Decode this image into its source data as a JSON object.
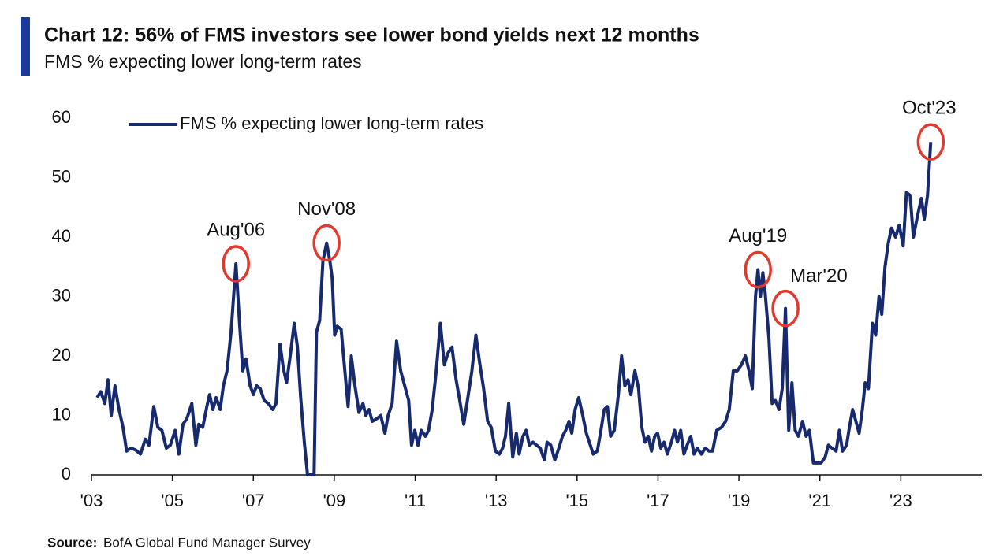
{
  "chart_data": {
    "type": "line",
    "title": "Chart 12: 56% of FMS investors see lower bond yields next 12 months",
    "subtitle": "FMS % expecting lower long-term rates",
    "x": [
      2003.14,
      2003.23,
      2003.33,
      2003.41,
      2003.49,
      2003.58,
      2003.68,
      2003.78,
      2003.87,
      2003.97,
      2004.09,
      2004.21,
      2004.33,
      2004.42,
      2004.54,
      2004.64,
      2004.74,
      2004.85,
      2004.95,
      2005.07,
      2005.16,
      2005.26,
      2005.36,
      2005.48,
      2005.58,
      2005.65,
      2005.75,
      2005.85,
      2005.92,
      2006.0,
      2006.08,
      2006.18,
      2006.26,
      2006.35,
      2006.45,
      2006.57,
      2006.66,
      2006.74,
      2006.82,
      2006.92,
      2007.0,
      2007.08,
      2007.17,
      2007.27,
      2007.37,
      2007.48,
      2007.56,
      2007.66,
      2007.74,
      2007.82,
      2007.91,
      2008.01,
      2008.09,
      2008.17,
      2008.26,
      2008.34,
      2008.5,
      2008.56,
      2008.64,
      2008.72,
      2008.81,
      2008.89,
      2008.95,
      2009.01,
      2009.07,
      2009.17,
      2009.26,
      2009.34,
      2009.42,
      2009.51,
      2009.61,
      2009.71,
      2009.78,
      2009.86,
      2009.94,
      2010.06,
      2010.15,
      2010.25,
      2010.33,
      2010.43,
      2010.54,
      2010.64,
      2010.74,
      2010.84,
      2010.91,
      2010.99,
      2011.07,
      2011.15,
      2011.25,
      2011.33,
      2011.42,
      2011.52,
      2011.62,
      2011.72,
      2011.81,
      2011.91,
      2012.01,
      2012.1,
      2012.2,
      2012.3,
      2012.4,
      2012.5,
      2012.59,
      2012.69,
      2012.79,
      2012.88,
      2012.98,
      2013.08,
      2013.16,
      2013.23,
      2013.31,
      2013.41,
      2013.5,
      2013.57,
      2013.66,
      2013.74,
      2013.82,
      2013.91,
      2014.0,
      2014.09,
      2014.19,
      2014.26,
      2014.35,
      2014.45,
      2014.55,
      2014.64,
      2014.72,
      2014.8,
      2014.87,
      2014.95,
      2015.04,
      2015.14,
      2015.23,
      2015.4,
      2015.5,
      2015.59,
      2015.67,
      2015.75,
      2015.83,
      2015.92,
      2016.02,
      2016.1,
      2016.18,
      2016.26,
      2016.33,
      2016.43,
      2016.52,
      2016.6,
      2016.68,
      2016.76,
      2016.84,
      2016.92,
      2016.99,
      2017.07,
      2017.15,
      2017.23,
      2017.33,
      2017.41,
      2017.48,
      2017.56,
      2017.64,
      2017.72,
      2017.81,
      2017.89,
      2017.97,
      2018.07,
      2018.17,
      2018.26,
      2018.35,
      2018.45,
      2018.57,
      2018.67,
      2018.76,
      2018.86,
      2018.96,
      2019.06,
      2019.16,
      2019.25,
      2019.33,
      2019.41,
      2019.47,
      2019.53,
      2019.59,
      2019.65,
      2019.74,
      2019.82,
      2019.9,
      2019.99,
      2020.07,
      2020.15,
      2020.23,
      2020.31,
      2020.39,
      2020.47,
      2020.57,
      2020.66,
      2020.74,
      2020.84,
      2020.94,
      2021.03,
      2021.13,
      2021.21,
      2021.3,
      2021.4,
      2021.48,
      2021.56,
      2021.66,
      2021.73,
      2021.81,
      2021.89,
      2021.97,
      2022.05,
      2022.12,
      2022.2,
      2022.3,
      2022.38,
      2022.46,
      2022.53,
      2022.61,
      2022.69,
      2022.77,
      2022.87,
      2022.96,
      2023.06,
      2023.14,
      2023.23,
      2023.31,
      2023.41,
      2023.51,
      2023.58,
      2023.66,
      2023.74
    ],
    "series": [
      {
        "name": "FMS % expecting lower long-term rates",
        "color": "#172a6e",
        "values": [
          13,
          14,
          12,
          16,
          10,
          15,
          11,
          8,
          4,
          4.5,
          4.2,
          3.5,
          6,
          5,
          11.5,
          8,
          7.5,
          4.5,
          5,
          7.5,
          3.5,
          8.5,
          9.5,
          12,
          5,
          8.5,
          8,
          11.5,
          13.5,
          11,
          13,
          11,
          15,
          17.5,
          24,
          35.5,
          25.5,
          17.5,
          19.5,
          15,
          13.5,
          15,
          14.5,
          12.5,
          12,
          11,
          12,
          22,
          18,
          15.5,
          20,
          25.5,
          21.5,
          13,
          5.5,
          0,
          0,
          24,
          26,
          36,
          39,
          36,
          33,
          23.5,
          25,
          24.5,
          17.5,
          11.5,
          20,
          15,
          10.5,
          12,
          10,
          11,
          9,
          9.5,
          10,
          7,
          10,
          12,
          22.5,
          17.5,
          15,
          12.5,
          5,
          7.5,
          5,
          7.5,
          6.5,
          7.5,
          11,
          17.5,
          25.5,
          18.5,
          20.5,
          21.5,
          16,
          12.5,
          8.5,
          13,
          17.5,
          23.5,
          19,
          14.5,
          9,
          8,
          4,
          3.5,
          4.5,
          6.5,
          12,
          3,
          7,
          3.5,
          6.5,
          7.5,
          5,
          5.5,
          5,
          4.5,
          2.5,
          5.5,
          5,
          2.5,
          4.5,
          6.5,
          7.5,
          9,
          7,
          11,
          13,
          10,
          7,
          3.5,
          4,
          7.5,
          11,
          11.5,
          6.5,
          7.5,
          13.5,
          20,
          15,
          16,
          13.5,
          17.5,
          14.5,
          8,
          5.5,
          6.5,
          4,
          6.5,
          7,
          4.5,
          5.5,
          3.5,
          5.5,
          7.5,
          5.5,
          7.5,
          3.5,
          5,
          6.5,
          3.5,
          4.5,
          3.5,
          4.5,
          4,
          4,
          7.5,
          8,
          9,
          11,
          17.5,
          17.5,
          18.5,
          20,
          17.5,
          14.5,
          30,
          34.5,
          30,
          34,
          30.5,
          23,
          12,
          12.5,
          11,
          14.5,
          28,
          7.5,
          15.5,
          7.5,
          6.5,
          9,
          6.5,
          7.5,
          2,
          2,
          2,
          3,
          5,
          4.5,
          4,
          7.5,
          4,
          5,
          8,
          11,
          9,
          7,
          11,
          15.5,
          14.5,
          25.5,
          23.5,
          30,
          27,
          35,
          39,
          41.5,
          40,
          42,
          38.5,
          47.5,
          47,
          40,
          43.5,
          46.5,
          43,
          47,
          56
        ]
      }
    ],
    "xlim": [
      2003,
      2025
    ],
    "xticks": [
      {
        "value": 2003,
        "label": "'03"
      },
      {
        "value": 2005,
        "label": "'05"
      },
      {
        "value": 2007,
        "label": "'07"
      },
      {
        "value": 2009,
        "label": "'09"
      },
      {
        "value": 2011,
        "label": "'11"
      },
      {
        "value": 2013,
        "label": "'13"
      },
      {
        "value": 2015,
        "label": "'15"
      },
      {
        "value": 2017,
        "label": "'17"
      },
      {
        "value": 2019,
        "label": "'19"
      },
      {
        "value": 2021,
        "label": "'21"
      },
      {
        "value": 2023,
        "label": "'23"
      }
    ],
    "ylim": [
      0,
      60
    ],
    "yticks": [
      0,
      10,
      20,
      30,
      40,
      50,
      60
    ],
    "grid": false,
    "legend": "upper left",
    "annotation_color": "#e0392e",
    "annotations": [
      {
        "text": "Aug'06",
        "x": 2006.57
      },
      {
        "text": "Nov'08",
        "x": 2008.81
      },
      {
        "text": "Aug'19",
        "x": 2019.47
      },
      {
        "text": "Mar'20",
        "x": 2020.15
      },
      {
        "text": "Oct'23",
        "x": 2023.74
      }
    ],
    "source": {
      "label": "Source:",
      "text": "BofA Global Fund Manager Survey"
    }
  }
}
